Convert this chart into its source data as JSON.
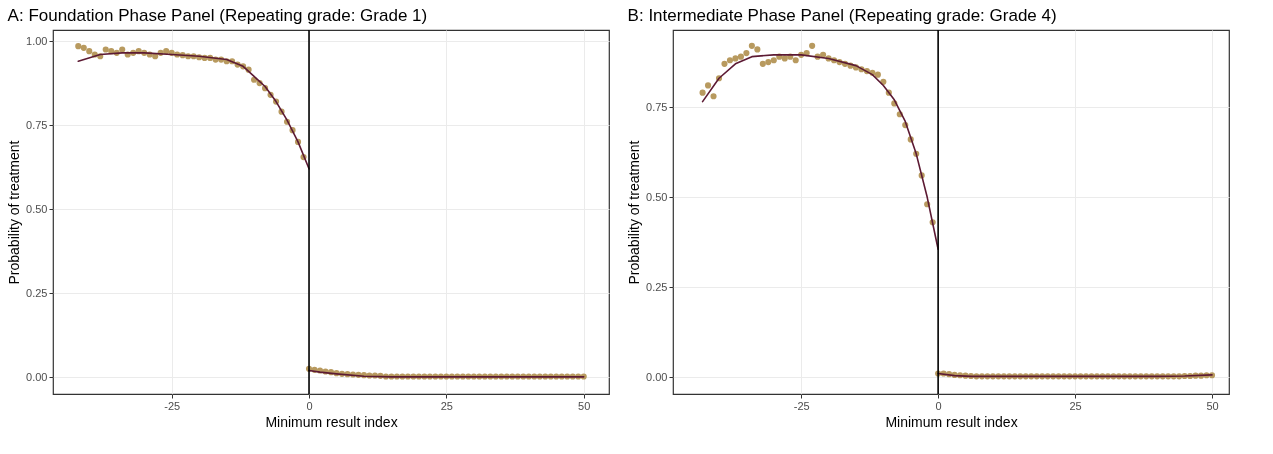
{
  "chart_data": [
    {
      "type": "scatter",
      "title": "A: Foundation Phase Panel (Repeating grade: Grade 1)",
      "xlabel": "Minimum result index",
      "ylabel": "Probability of treatment",
      "xlim": [
        -46.6,
        54.6
      ],
      "ylim": [
        -0.05,
        1.033
      ],
      "xticks": [
        -25,
        0,
        25,
        50
      ],
      "yticks": [
        {
          "value": 0,
          "label": "0.00"
        },
        {
          "value": 0.25,
          "label": "0.25"
        },
        {
          "value": 0.5,
          "label": "0.50"
        },
        {
          "value": 0.75,
          "label": "0.75"
        },
        {
          "value": 1,
          "label": "1.00"
        }
      ],
      "grid": true,
      "ref_lines": [
        {
          "axis": "x",
          "value": 0,
          "color": "#000000"
        }
      ],
      "series": [
        {
          "color": "#b89a5f",
          "x": [
            -42,
            -41,
            -40,
            -39,
            -38,
            -37,
            -36,
            -35,
            -34,
            -33,
            -32,
            -31,
            -30,
            -29,
            -28,
            -27,
            -26,
            -25,
            -24,
            -23,
            -22,
            -21,
            -20,
            -19,
            -18,
            -17,
            -16,
            -15,
            -14,
            -13,
            -12,
            -11,
            -10,
            -9,
            -8,
            -7,
            -6,
            -5,
            -4,
            -3,
            -2,
            -1,
            0,
            1,
            2,
            3,
            4,
            5,
            6,
            7,
            8,
            9,
            10,
            11,
            12,
            13,
            14,
            15,
            16,
            17,
            18,
            19,
            20,
            21,
            22,
            23,
            24,
            25,
            26,
            27,
            28,
            29,
            30,
            31,
            32,
            33,
            34,
            35,
            36,
            37,
            38,
            39,
            40,
            41,
            42,
            43,
            44,
            45,
            46,
            47,
            48,
            49,
            50
          ],
          "values": [
            0.985,
            0.98,
            0.97,
            0.96,
            0.955,
            0.975,
            0.97,
            0.965,
            0.975,
            0.96,
            0.965,
            0.97,
            0.965,
            0.96,
            0.955,
            0.965,
            0.97,
            0.965,
            0.96,
            0.958,
            0.955,
            0.955,
            0.952,
            0.95,
            0.95,
            0.945,
            0.945,
            0.94,
            0.94,
            0.93,
            0.925,
            0.915,
            0.885,
            0.875,
            0.86,
            0.84,
            0.82,
            0.79,
            0.76,
            0.735,
            0.7,
            0.655,
            0.025,
            0.022,
            0.02,
            0.017,
            0.015,
            0.012,
            0.01,
            0.009,
            0.008,
            0.007,
            0.006,
            0.005,
            0.005,
            0.004,
            0.002,
            0.002,
            0.002,
            0.002,
            0.002,
            0.002,
            0.002,
            0.002,
            0.002,
            0.002,
            0.002,
            0.002,
            0.002,
            0.002,
            0.002,
            0.002,
            0.002,
            0.002,
            0.002,
            0.002,
            0.002,
            0.002,
            0.002,
            0.002,
            0.002,
            0.002,
            0.002,
            0.002,
            0.002,
            0.002,
            0.002,
            0.002,
            0.002,
            0.002,
            0.002,
            0.002,
            0.002
          ]
        },
        {
          "type": "line",
          "color": "#5c1a33",
          "x": [
            -42,
            -38,
            -34,
            -30,
            -25,
            -20,
            -15,
            -12,
            -10,
            -8,
            -6,
            -4,
            -2,
            0
          ],
          "values": [
            0.94,
            0.96,
            0.965,
            0.965,
            0.96,
            0.955,
            0.945,
            0.925,
            0.895,
            0.865,
            0.82,
            0.765,
            0.7,
            0.62
          ]
        },
        {
          "type": "line",
          "color": "#5c1a33",
          "x": [
            0,
            2,
            5,
            10,
            15,
            50
          ],
          "values": [
            0.02,
            0.015,
            0.01,
            0.003,
            0.001,
            0.001
          ]
        }
      ]
    },
    {
      "type": "scatter",
      "title": "B: Intermediate Phase Panel (Repeating grade: Grade 4)",
      "xlabel": "Minimum result index",
      "ylabel": "Probability of treatment",
      "xlim": [
        -48.4,
        53.1
      ],
      "ylim": [
        -0.047,
        0.964
      ],
      "xticks": [
        -25,
        0,
        25,
        50
      ],
      "yticks": [
        {
          "value": 0,
          "label": "0.00"
        },
        {
          "value": 0.25,
          "label": "0.25"
        },
        {
          "value": 0.5,
          "label": "0.50"
        },
        {
          "value": 0.75,
          "label": "0.75"
        }
      ],
      "grid": true,
      "ref_lines": [
        {
          "axis": "x",
          "value": 0,
          "color": "#000000"
        }
      ],
      "series": [
        {
          "color": "#b89a5f",
          "x": [
            -43,
            -42,
            -41,
            -40,
            -39,
            -38,
            -37,
            -36,
            -35,
            -34,
            -33,
            -32,
            -31,
            -30,
            -29,
            -28,
            -27,
            -26,
            -25,
            -24,
            -23,
            -22,
            -21,
            -20,
            -19,
            -18,
            -17,
            -16,
            -15,
            -14,
            -13,
            -12,
            -11,
            -10,
            -9,
            -8,
            -7,
            -6,
            -5,
            -4,
            -3,
            -2,
            -1,
            0,
            1,
            2,
            3,
            4,
            5,
            6,
            7,
            8,
            9,
            10,
            11,
            12,
            13,
            14,
            15,
            16,
            17,
            18,
            19,
            20,
            21,
            22,
            23,
            24,
            25,
            26,
            27,
            28,
            29,
            30,
            31,
            32,
            33,
            34,
            35,
            36,
            37,
            38,
            39,
            40,
            41,
            42,
            43,
            44,
            45,
            46,
            47,
            48,
            49,
            50
          ],
          "values": [
            0.79,
            0.81,
            0.78,
            0.83,
            0.87,
            0.88,
            0.885,
            0.89,
            0.9,
            0.92,
            0.91,
            0.87,
            0.875,
            0.88,
            0.89,
            0.885,
            0.89,
            0.88,
            0.895,
            0.9,
            0.92,
            0.89,
            0.895,
            0.885,
            0.88,
            0.875,
            0.87,
            0.865,
            0.86,
            0.855,
            0.85,
            0.845,
            0.84,
            0.82,
            0.79,
            0.76,
            0.73,
            0.7,
            0.66,
            0.62,
            0.56,
            0.48,
            0.43,
            0.01,
            0.01,
            0.008,
            0.006,
            0.005,
            0.004,
            0.003,
            0.002,
            0.002,
            0.002,
            0.002,
            0.002,
            0.002,
            0.002,
            0.002,
            0.002,
            0.002,
            0.002,
            0.002,
            0.002,
            0.002,
            0.002,
            0.002,
            0.002,
            0.002,
            0.002,
            0.002,
            0.002,
            0.002,
            0.002,
            0.002,
            0.002,
            0.002,
            0.002,
            0.002,
            0.002,
            0.002,
            0.002,
            0.002,
            0.002,
            0.002,
            0.002,
            0.002,
            0.002,
            0.002,
            0.003,
            0.003,
            0.004,
            0.004,
            0.005,
            0.005
          ]
        },
        {
          "type": "line",
          "color": "#5c1a33",
          "x": [
            -43,
            -40,
            -37,
            -34,
            -30,
            -25,
            -20,
            -15,
            -12,
            -10,
            -8,
            -6,
            -4,
            -2,
            0
          ],
          "values": [
            0.765,
            0.83,
            0.87,
            0.89,
            0.895,
            0.895,
            0.885,
            0.865,
            0.84,
            0.81,
            0.77,
            0.71,
            0.62,
            0.5,
            0.355
          ]
        },
        {
          "type": "line",
          "color": "#5c1a33",
          "x": [
            0,
            3,
            6,
            40,
            45,
            50
          ],
          "values": [
            0.01,
            0.004,
            0.002,
            0.002,
            0.003,
            0.006
          ]
        }
      ]
    }
  ]
}
